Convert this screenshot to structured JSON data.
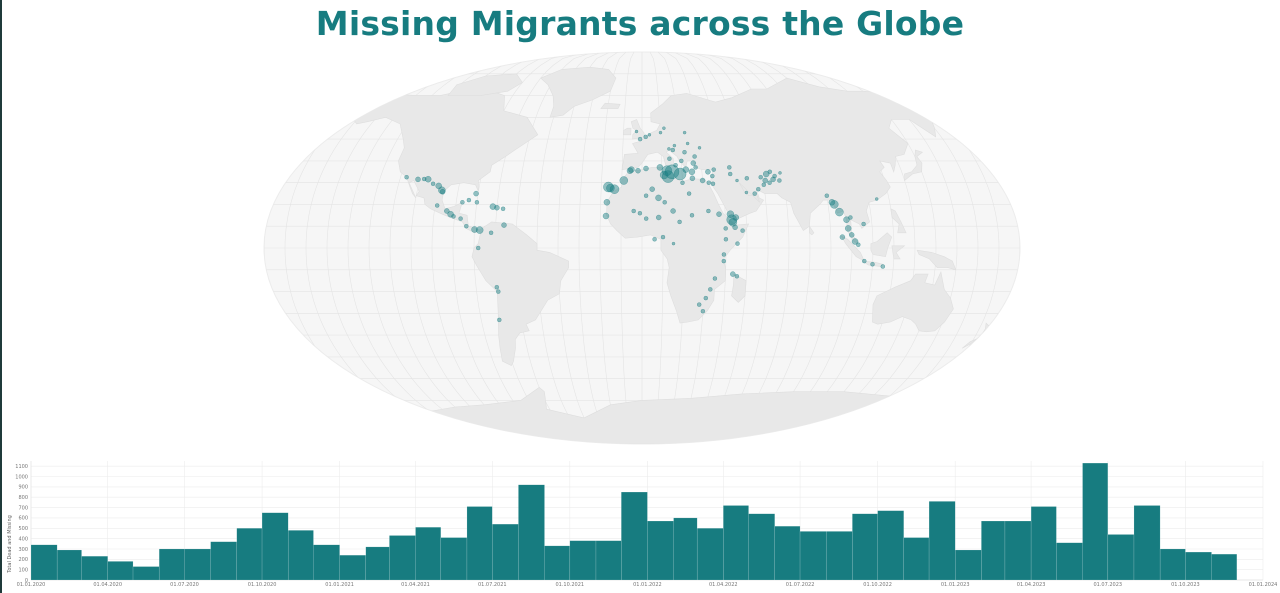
{
  "title": "Missing Migrants across the Globe",
  "colors": {
    "accent": "#177c80",
    "land": "#e8e8e8",
    "ocean": "#f6f6f6",
    "grid": "#e2e2e2"
  },
  "map": {
    "projection": "robinson-like",
    "markers": [
      {
        "lon": -117,
        "lat": 32.5,
        "r": 2
      },
      {
        "lon": -111,
        "lat": 31.5,
        "r": 2.5
      },
      {
        "lon": -108,
        "lat": 31.7,
        "r": 2
      },
      {
        "lon": -106,
        "lat": 31.6,
        "r": 3
      },
      {
        "lon": -103,
        "lat": 29.5,
        "r": 2
      },
      {
        "lon": -100,
        "lat": 28.5,
        "r": 3
      },
      {
        "lon": -98,
        "lat": 26.5,
        "r": 3.5
      },
      {
        "lon": -97.5,
        "lat": 25.8,
        "r": 2.5
      },
      {
        "lon": -99,
        "lat": 19.5,
        "r": 2
      },
      {
        "lon": -94,
        "lat": 17,
        "r": 2.5
      },
      {
        "lon": -92,
        "lat": 15.5,
        "r": 3
      },
      {
        "lon": -90.5,
        "lat": 14.5,
        "r": 2
      },
      {
        "lon": -87,
        "lat": 13.5,
        "r": 2
      },
      {
        "lon": -84,
        "lat": 10,
        "r": 2
      },
      {
        "lon": -80,
        "lat": 8.5,
        "r": 3
      },
      {
        "lon": -77.5,
        "lat": 8.2,
        "r": 3.5
      },
      {
        "lon": -81,
        "lat": 25,
        "r": 2.5
      },
      {
        "lon": -80,
        "lat": 21,
        "r": 2
      },
      {
        "lon": -72,
        "lat": 19,
        "r": 3
      },
      {
        "lon": -70,
        "lat": 18.5,
        "r": 2.5
      },
      {
        "lon": -67,
        "lat": 18,
        "r": 2
      },
      {
        "lon": -66,
        "lat": 10.5,
        "r": 2.5
      },
      {
        "lon": -72,
        "lat": 7,
        "r": 2
      },
      {
        "lon": -78,
        "lat": 0,
        "r": 2
      },
      {
        "lon": -70,
        "lat": -18,
        "r": 2
      },
      {
        "lon": -69.5,
        "lat": -20,
        "r": 2
      },
      {
        "lon": -71,
        "lat": -33,
        "r": 2
      },
      {
        "lon": -87,
        "lat": 21,
        "r": 2
      },
      {
        "lon": -84,
        "lat": 22,
        "r": 2
      },
      {
        "lon": -16.5,
        "lat": 28,
        "r": 5
      },
      {
        "lon": -15.5,
        "lat": 27.5,
        "r": 4
      },
      {
        "lon": -13.5,
        "lat": 27,
        "r": 4.5
      },
      {
        "lon": -17,
        "lat": 21,
        "r": 3
      },
      {
        "lon": -17.3,
        "lat": 14.7,
        "r": 3
      },
      {
        "lon": -9,
        "lat": 31,
        "r": 4
      },
      {
        "lon": -6,
        "lat": 35.5,
        "r": 3
      },
      {
        "lon": -5.3,
        "lat": 36,
        "r": 3
      },
      {
        "lon": -2,
        "lat": 35.5,
        "r": 2.5
      },
      {
        "lon": 2,
        "lat": 36.5,
        "r": 2.5
      },
      {
        "lon": 9,
        "lat": 37,
        "r": 3
      },
      {
        "lon": 11,
        "lat": 33.5,
        "r": 4
      },
      {
        "lon": 13,
        "lat": 32.8,
        "r": 6
      },
      {
        "lon": 15,
        "lat": 35,
        "r": 7
      },
      {
        "lon": 12.5,
        "lat": 35.5,
        "r": 5
      },
      {
        "lon": 19,
        "lat": 34,
        "r": 6
      },
      {
        "lon": 22,
        "lat": 36,
        "r": 3
      },
      {
        "lon": 25,
        "lat": 35,
        "r": 3
      },
      {
        "lon": 26,
        "lat": 39,
        "r": 2.5
      },
      {
        "lon": 27,
        "lat": 37,
        "r": 2
      },
      {
        "lon": 20,
        "lat": 40,
        "r": 2
      },
      {
        "lon": 17,
        "lat": 38,
        "r": 2
      },
      {
        "lon": 14,
        "lat": 41,
        "r": 2
      },
      {
        "lon": 16,
        "lat": 45,
        "r": 2
      },
      {
        "lon": 22,
        "lat": 44,
        "r": 2
      },
      {
        "lon": 27,
        "lat": 42,
        "r": 2
      },
      {
        "lon": 14,
        "lat": 45.5,
        "r": 1.5
      },
      {
        "lon": 17,
        "lat": 47,
        "r": 1.5
      },
      {
        "lon": 24,
        "lat": 48,
        "r": 1.5
      },
      {
        "lon": 30,
        "lat": 46,
        "r": 1.5
      },
      {
        "lon": 2,
        "lat": 51,
        "r": 2
      },
      {
        "lon": -1,
        "lat": 50,
        "r": 2
      },
      {
        "lon": 4,
        "lat": 52,
        "r": 1.5
      },
      {
        "lon": 10,
        "lat": 53,
        "r": 1.5
      },
      {
        "lon": -3,
        "lat": 53.5,
        "r": 1.5
      },
      {
        "lon": 12,
        "lat": 55,
        "r": 1.5
      },
      {
        "lon": 23,
        "lat": 53,
        "r": 1.5
      },
      {
        "lon": 33,
        "lat": 35,
        "r": 2.5
      },
      {
        "lon": 35,
        "lat": 33,
        "r": 2
      },
      {
        "lon": 36,
        "lat": 36,
        "r": 2
      },
      {
        "lon": 44,
        "lat": 37,
        "r": 2
      },
      {
        "lon": 44,
        "lat": 34,
        "r": 2
      },
      {
        "lon": 47,
        "lat": 31,
        "r": 1.5
      },
      {
        "lon": 25,
        "lat": 32,
        "r": 2.5
      },
      {
        "lon": 30,
        "lat": 31,
        "r": 2.5
      },
      {
        "lon": 33,
        "lat": 30,
        "r": 2
      },
      {
        "lon": 35,
        "lat": 29.5,
        "r": 2
      },
      {
        "lon": 20,
        "lat": 30,
        "r": 2
      },
      {
        "lon": 23,
        "lat": 25,
        "r": 2
      },
      {
        "lon": 8,
        "lat": 23,
        "r": 3
      },
      {
        "lon": 5,
        "lat": 27,
        "r": 2.5
      },
      {
        "lon": 2,
        "lat": 24,
        "r": 2
      },
      {
        "lon": 11,
        "lat": 21,
        "r": 2
      },
      {
        "lon": 15,
        "lat": 17,
        "r": 2.5
      },
      {
        "lon": 8,
        "lat": 14,
        "r": 2.5
      },
      {
        "lon": 2,
        "lat": 13.5,
        "r": 2
      },
      {
        "lon": -1,
        "lat": 16,
        "r": 2
      },
      {
        "lon": -4,
        "lat": 17,
        "r": 2
      },
      {
        "lon": 18,
        "lat": 12,
        "r": 2
      },
      {
        "lon": 24,
        "lat": 15,
        "r": 2
      },
      {
        "lon": 32,
        "lat": 17,
        "r": 2
      },
      {
        "lon": 37,
        "lat": 15.5,
        "r": 2.5
      },
      {
        "lon": 43,
        "lat": 13,
        "r": 5
      },
      {
        "lon": 43.5,
        "lat": 11.8,
        "r": 4
      },
      {
        "lon": 45,
        "lat": 14,
        "r": 3
      },
      {
        "lon": 42.5,
        "lat": 15.5,
        "r": 3.5
      },
      {
        "lon": 40,
        "lat": 9,
        "r": 2
      },
      {
        "lon": 44.5,
        "lat": 9.5,
        "r": 2.5
      },
      {
        "lon": 48,
        "lat": 8,
        "r": 2
      },
      {
        "lon": 45.5,
        "lat": 2,
        "r": 2
      },
      {
        "lon": 40,
        "lat": 4,
        "r": 2
      },
      {
        "lon": 39,
        "lat": -3,
        "r": 2
      },
      {
        "lon": 39,
        "lat": -6,
        "r": 2
      },
      {
        "lon": 43.5,
        "lat": -12,
        "r": 2.5
      },
      {
        "lon": 45.5,
        "lat": -13,
        "r": 2
      },
      {
        "lon": 35,
        "lat": -14,
        "r": 2
      },
      {
        "lon": 33,
        "lat": -19,
        "r": 2
      },
      {
        "lon": 31,
        "lat": -23,
        "r": 2
      },
      {
        "lon": 28,
        "lat": -26,
        "r": 2
      },
      {
        "lon": 30,
        "lat": -29,
        "r": 2
      },
      {
        "lon": 10,
        "lat": 5,
        "r": 2
      },
      {
        "lon": 6,
        "lat": 4,
        "r": 2
      },
      {
        "lon": 15,
        "lat": 2,
        "r": 1.5
      },
      {
        "lon": 52,
        "lat": 32,
        "r": 2
      },
      {
        "lon": 57,
        "lat": 27,
        "r": 2
      },
      {
        "lon": 60,
        "lat": 29,
        "r": 2
      },
      {
        "lon": 61,
        "lat": 31,
        "r": 2.5
      },
      {
        "lon": 62,
        "lat": 34,
        "r": 3
      },
      {
        "lon": 63,
        "lat": 30,
        "r": 2
      },
      {
        "lon": 64,
        "lat": 35,
        "r": 2
      },
      {
        "lon": 66,
        "lat": 33,
        "r": 2
      },
      {
        "lon": 68,
        "lat": 31,
        "r": 2
      },
      {
        "lon": 65,
        "lat": 31.5,
        "r": 2.5
      },
      {
        "lon": 59,
        "lat": 32.5,
        "r": 2
      },
      {
        "lon": 55,
        "lat": 25,
        "r": 2
      },
      {
        "lon": 51,
        "lat": 25.5,
        "r": 1.5
      },
      {
        "lon": 69,
        "lat": 34.5,
        "r": 1.5
      },
      {
        "lon": 90,
        "lat": 24,
        "r": 2
      },
      {
        "lon": 92,
        "lat": 21,
        "r": 3
      },
      {
        "lon": 93,
        "lat": 20,
        "r": 4
      },
      {
        "lon": 95,
        "lat": 16.5,
        "r": 4
      },
      {
        "lon": 98,
        "lat": 13,
        "r": 3
      },
      {
        "lon": 98.5,
        "lat": 9,
        "r": 3
      },
      {
        "lon": 100,
        "lat": 6,
        "r": 2.5
      },
      {
        "lon": 101.5,
        "lat": 3,
        "r": 3
      },
      {
        "lon": 95.5,
        "lat": 5,
        "r": 2.5
      },
      {
        "lon": 103,
        "lat": 1.5,
        "r": 2
      },
      {
        "lon": 106,
        "lat": -6,
        "r": 2
      },
      {
        "lon": 110,
        "lat": -7.5,
        "r": 2
      },
      {
        "lon": 115,
        "lat": -8.5,
        "r": 2
      },
      {
        "lon": 100,
        "lat": 14,
        "r": 2
      },
      {
        "lon": 106,
        "lat": 11,
        "r": 2
      },
      {
        "lon": 114,
        "lat": 22.5,
        "r": 1.5
      }
    ]
  },
  "chart_data": {
    "type": "bar",
    "ylabel": "Total Dead and Missing",
    "ylim": [
      0,
      1150
    ],
    "y_ticks": [
      0,
      100,
      200,
      300,
      400,
      500,
      600,
      700,
      800,
      900,
      1000,
      1100
    ],
    "x_domain": [
      "2020-01-01",
      "2024-01-01"
    ],
    "x_tick_labels": [
      "01.01.2020",
      "01.04.2020",
      "01.07.2020",
      "01.10.2020",
      "01.01.2021",
      "01.04.2021",
      "01.07.2021",
      "01.10.2021",
      "01.01.2022",
      "01.04.2022",
      "01.07.2022",
      "01.10.2022",
      "01.01.2023",
      "01.04.2023",
      "01.07.2023",
      "01.10.2023",
      "01.01.2024"
    ],
    "categories": [
      "2020-01",
      "2020-02",
      "2020-03",
      "2020-04",
      "2020-05",
      "2020-06",
      "2020-07",
      "2020-08",
      "2020-09",
      "2020-10",
      "2020-11",
      "2020-12",
      "2021-01",
      "2021-02",
      "2021-03",
      "2021-04",
      "2021-05",
      "2021-06",
      "2021-07",
      "2021-08",
      "2021-09",
      "2021-10",
      "2021-11",
      "2021-12",
      "2022-01",
      "2022-02",
      "2022-03",
      "2022-04",
      "2022-05",
      "2022-06",
      "2022-07",
      "2022-08",
      "2022-09",
      "2022-10",
      "2022-11",
      "2022-12",
      "2023-01",
      "2023-02",
      "2023-03",
      "2023-04",
      "2023-05",
      "2023-06",
      "2023-07",
      "2023-08",
      "2023-09",
      "2023-10",
      "2023-11"
    ],
    "values": [
      340,
      290,
      230,
      180,
      130,
      300,
      300,
      370,
      500,
      650,
      480,
      340,
      240,
      320,
      430,
      510,
      410,
      710,
      540,
      920,
      330,
      380,
      380,
      850,
      570,
      600,
      500,
      720,
      640,
      520,
      470,
      470,
      640,
      670,
      410,
      760,
      290,
      570,
      570,
      710,
      360,
      1130,
      440,
      720,
      300,
      270,
      250
    ],
    "bar_color": "#177c80"
  }
}
